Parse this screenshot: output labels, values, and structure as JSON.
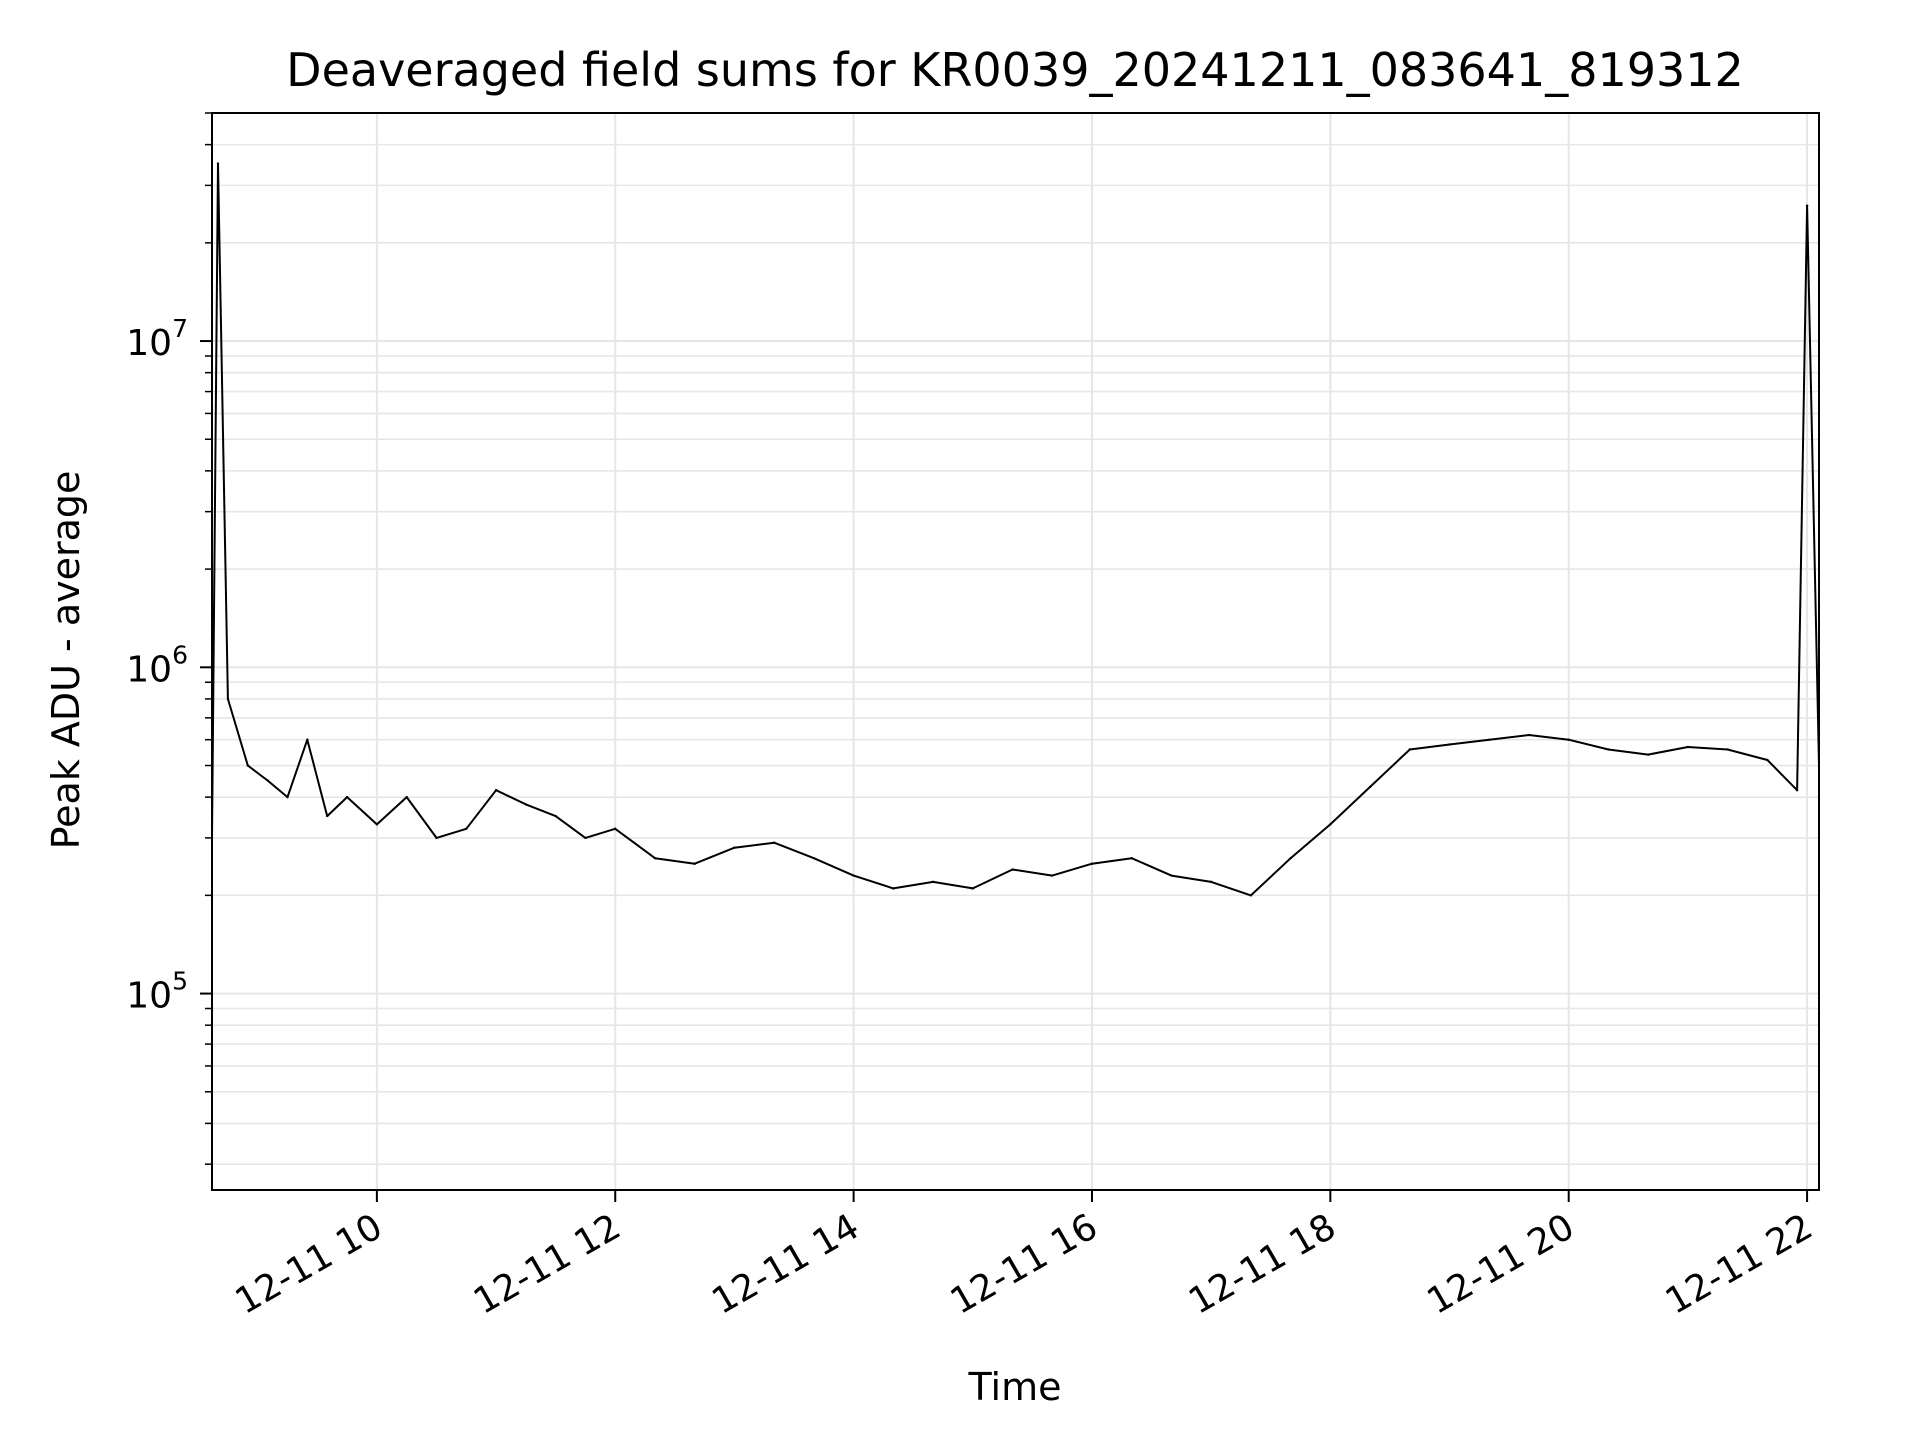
{
  "chart_data": {
    "type": "line",
    "title": "Deaveraged field sums for KR0039_20241211_083641_819312",
    "xlabel": "Time",
    "ylabel": "Peak ADU - average",
    "y_scale": "log",
    "ylim": [
      25000,
      50000000
    ],
    "xlim": [
      "2024-12-11 08:37",
      "2024-12-11 22:06"
    ],
    "grid": true,
    "legend": "none",
    "line_color": "#000000",
    "grid_color": "#e6e6e6",
    "x_ticks": [
      {
        "x": "2024-12-11 10:00",
        "label": "12-11 10"
      },
      {
        "x": "2024-12-11 12:00",
        "label": "12-11 12"
      },
      {
        "x": "2024-12-11 14:00",
        "label": "12-11 14"
      },
      {
        "x": "2024-12-11 16:00",
        "label": "12-11 16"
      },
      {
        "x": "2024-12-11 18:00",
        "label": "12-11 18"
      },
      {
        "x": "2024-12-11 20:00",
        "label": "12-11 20"
      },
      {
        "x": "2024-12-11 22:00",
        "label": "12-11 22"
      }
    ],
    "y_ticks": [
      {
        "y": 100000,
        "base": "10",
        "exp": "5"
      },
      {
        "y": 1000000,
        "base": "10",
        "exp": "6"
      },
      {
        "y": 10000000,
        "base": "10",
        "exp": "7"
      }
    ],
    "series": [
      {
        "x": [
          "2024-12-11 08:37",
          "2024-12-11 08:40",
          "2024-12-11 08:45",
          "2024-12-11 08:55",
          "2024-12-11 09:05",
          "2024-12-11 09:15",
          "2024-12-11 09:25",
          "2024-12-11 09:35",
          "2024-12-11 09:45",
          "2024-12-11 10:00",
          "2024-12-11 10:15",
          "2024-12-11 10:30",
          "2024-12-11 10:45",
          "2024-12-11 11:00",
          "2024-12-11 11:15",
          "2024-12-11 11:30",
          "2024-12-11 11:45",
          "2024-12-11 12:00",
          "2024-12-11 12:20",
          "2024-12-11 12:40",
          "2024-12-11 13:00",
          "2024-12-11 13:20",
          "2024-12-11 13:40",
          "2024-12-11 14:00",
          "2024-12-11 14:20",
          "2024-12-11 14:40",
          "2024-12-11 15:00",
          "2024-12-11 15:20",
          "2024-12-11 15:40",
          "2024-12-11 16:00",
          "2024-12-11 16:20",
          "2024-12-11 16:40",
          "2024-12-11 17:00",
          "2024-12-11 17:20",
          "2024-12-11 17:40",
          "2024-12-11 18:00",
          "2024-12-11 18:20",
          "2024-12-11 18:40",
          "2024-12-11 19:00",
          "2024-12-11 19:20",
          "2024-12-11 19:40",
          "2024-12-11 20:00",
          "2024-12-11 20:20",
          "2024-12-11 20:40",
          "2024-12-11 21:00",
          "2024-12-11 21:20",
          "2024-12-11 21:40",
          "2024-12-11 21:55",
          "2024-12-11 22:00",
          "2024-12-11 22:06"
        ],
        "y": [
          300000,
          35000000,
          800000,
          500000,
          450000,
          400000,
          600000,
          350000,
          400000,
          330000,
          400000,
          300000,
          320000,
          420000,
          380000,
          350000,
          300000,
          320000,
          260000,
          250000,
          280000,
          290000,
          260000,
          230000,
          210000,
          220000,
          210000,
          240000,
          230000,
          250000,
          260000,
          230000,
          220000,
          200000,
          260000,
          330000,
          430000,
          560000,
          580000,
          600000,
          620000,
          600000,
          560000,
          540000,
          570000,
          560000,
          520000,
          420000,
          26000000,
          500000
        ]
      }
    ]
  }
}
